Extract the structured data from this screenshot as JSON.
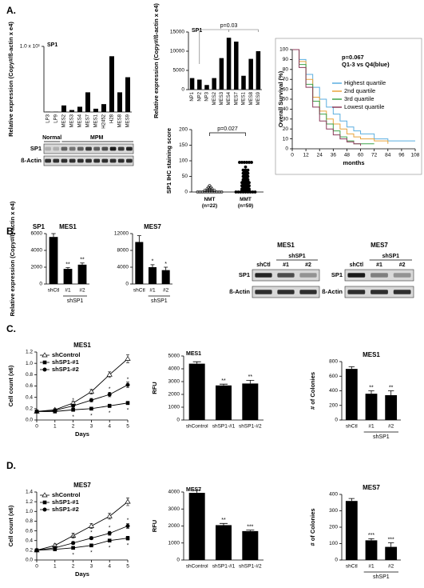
{
  "panel_labels": [
    "A.",
    "B.",
    "C.",
    "D."
  ],
  "blots": [
    {
      "bands": [
        "SP1",
        "ß-Actin"
      ],
      "groups": [
        "Normal",
        "MPM"
      ]
    },
    {
      "title": "MES1",
      "lanes": [
        "shCtl",
        "#1",
        "#2"
      ],
      "group": "shSP1",
      "bands": [
        "SP1",
        "ß-Actin"
      ]
    },
    {
      "title": "MES7",
      "lanes": [
        "shCtl",
        "#1",
        "#2"
      ],
      "group": "shSP1",
      "bands": [
        "SP1",
        "ß-Actin"
      ]
    }
  ],
  "chart_data": [
    {
      "type": "bar",
      "title": "SP1",
      "ylabel": "Relative expression (Copy#/ß-actin x e4)",
      "categories": [
        "LP3",
        "LP9",
        "MES2",
        "MES3",
        "MES4",
        "MES7",
        "MES1",
        "H2452",
        "H28",
        "MES8",
        "MES9"
      ],
      "values": [
        0.05,
        0.05,
        1,
        0.3,
        0.8,
        3,
        0.5,
        1.2,
        8.5,
        3,
        5.3
      ],
      "color": "#000000",
      "ylim": [
        0,
        10
      ],
      "yticks": [
        {
          "value": 10,
          "label": "1.0 x 10¹"
        }
      ]
    },
    {
      "type": "bar",
      "title": "SP1",
      "ylabel": "Relative expression (Copy#/ß-actin x e4)",
      "annotation": "p=0.03",
      "categories": [
        "NP1",
        "NP2",
        "NP3",
        "MES2",
        "MES3",
        "MES4",
        "MES7",
        "MES1",
        "MES8",
        "MES9"
      ],
      "values": [
        3000,
        2600,
        1200,
        3000,
        8200,
        13500,
        12500,
        3600,
        8000,
        10000
      ],
      "color": "#000000",
      "ylim": [
        0,
        15000
      ],
      "yticks": [
        0,
        5000,
        10000,
        15000
      ]
    },
    {
      "type": "strip",
      "ylabel": "SP1 IHC staining score",
      "annotation": "p=0.027",
      "categories": [
        "NMT\n(n=22)",
        "MMT\n(n=59)"
      ],
      "values": [
        [
          0,
          0,
          0,
          0,
          0,
          0,
          0,
          0,
          0,
          0,
          0,
          5,
          5,
          5,
          5,
          5,
          10,
          10,
          10,
          15,
          15,
          20
        ],
        [
          0,
          0,
          0,
          0,
          0,
          0,
          0,
          0,
          0,
          5,
          5,
          5,
          5,
          10,
          10,
          10,
          10,
          15,
          15,
          15,
          20,
          20,
          20,
          20,
          25,
          25,
          25,
          30,
          30,
          30,
          30,
          35,
          35,
          35,
          40,
          40,
          40,
          45,
          45,
          50,
          50,
          50,
          55,
          55,
          60,
          60,
          60,
          65,
          65,
          70,
          70,
          70,
          80,
          95,
          95,
          95,
          95,
          95,
          95
        ]
      ],
      "ylim": [
        0,
        200
      ],
      "yticks": [
        0,
        50,
        100,
        150,
        200
      ]
    },
    {
      "type": "line",
      "step": true,
      "xlabel": "months",
      "ylabel": "Overall Survival (%)",
      "annotation": [
        "p=0.067",
        "Q1-3 vs Q4(blue)"
      ],
      "x": [
        0,
        6,
        12,
        18,
        24,
        30,
        36,
        42,
        48,
        54,
        60,
        72,
        84,
        96,
        108
      ],
      "series": [
        {
          "name": "Highest quartile",
          "color": "#5aaee0",
          "values": [
            100,
            90,
            75,
            62,
            50,
            42,
            35,
            28,
            22,
            18,
            15,
            10,
            8,
            8,
            8
          ]
        },
        {
          "name": "2nd quartile",
          "color": "#e8a33c",
          "values": [
            100,
            88,
            70,
            52,
            38,
            30,
            25,
            20,
            15,
            12,
            10,
            8,
            5,
            null,
            null
          ]
        },
        {
          "name": "3rd quartile",
          "color": "#3fa34a",
          "values": [
            100,
            85,
            65,
            48,
            35,
            25,
            18,
            12,
            8,
            5,
            5,
            5,
            null,
            null,
            null
          ]
        },
        {
          "name": "Lowest quartile",
          "color": "#8b3a5a",
          "values": [
            100,
            82,
            62,
            42,
            28,
            20,
            14,
            10,
            7,
            5,
            3,
            null,
            null,
            null,
            null
          ]
        }
      ],
      "xlim": [
        0,
        108
      ],
      "xticks": [
        0,
        12,
        24,
        36,
        48,
        60,
        72,
        84,
        96,
        108
      ],
      "ylim": [
        0,
        100
      ],
      "yticks": [
        0,
        10,
        20,
        30,
        40,
        50,
        60,
        70,
        80,
        90,
        100
      ]
    },
    {
      "type": "bar",
      "label": "SP1",
      "title": "MES1",
      "ylabel": "Relative expression (Copy#/ß-actin x e4)",
      "categories": [
        "shCtl",
        "#1",
        "#2"
      ],
      "values": [
        5600,
        1800,
        2300
      ],
      "errors": [
        400,
        150,
        200
      ],
      "sig_labels": [
        null,
        "**",
        "**"
      ],
      "group_label": "shSP1",
      "color": "#000000",
      "ylim": [
        0,
        6000
      ],
      "yticks": [
        0,
        2000,
        4000,
        6000
      ]
    },
    {
      "type": "bar",
      "title": "MES7",
      "categories": [
        "shCtl",
        "#1",
        "#2"
      ],
      "values": [
        10000,
        4000,
        3300
      ],
      "errors": [
        1500,
        600,
        700
      ],
      "sig_labels": [
        null,
        "*",
        "*"
      ],
      "group_label": "shSP1",
      "color": "#000000",
      "ylim": [
        0,
        12000
      ],
      "yticks": [
        0,
        4000,
        8000,
        12000
      ]
    },
    {
      "type": "line",
      "title": "MES1",
      "xlabel": "Days",
      "ylabel": "Cell count (x6)",
      "x": [
        0,
        1,
        2,
        3,
        4,
        5
      ],
      "series": [
        {
          "name": "shControl",
          "marker": "triangle",
          "values": [
            0.15,
            0.18,
            0.3,
            0.5,
            0.8,
            1.08
          ],
          "errors": [
            0.01,
            0.02,
            0.03,
            0.04,
            0.05,
            0.07
          ]
        },
        {
          "name": "shSP1-#1",
          "marker": "square",
          "values": [
            0.15,
            0.15,
            0.18,
            0.2,
            0.25,
            0.3
          ],
          "errors": [
            0.01,
            0.01,
            0.02,
            0.02,
            0.03,
            0.03
          ],
          "sig_labels": [
            null,
            null,
            "*",
            "*",
            "*",
            "*"
          ]
        },
        {
          "name": "shSP1-#2",
          "marker": "circle",
          "values": [
            0.15,
            0.17,
            0.25,
            0.35,
            0.45,
            0.62
          ],
          "errors": [
            0.01,
            0.02,
            0.03,
            0.03,
            0.04,
            0.05
          ],
          "sig_labels": [
            null,
            null,
            "*",
            "*",
            "*",
            "*"
          ]
        }
      ],
      "xlim": [
        0,
        5
      ],
      "xticks": [
        0,
        1,
        2,
        3,
        4,
        5
      ],
      "ylim": [
        0,
        1.2
      ],
      "yticks": [
        {
          "value": 0,
          "label": "0.0"
        },
        {
          "value": 0.2,
          "label": "0.2"
        },
        {
          "value": 0.4,
          "label": "0.4"
        },
        {
          "value": 0.6,
          "label": "0.6"
        },
        {
          "value": 0.8,
          "label": "0.8"
        },
        {
          "value": 1,
          "label": "1.0"
        },
        {
          "value": 1.2,
          "label": "1.2"
        }
      ]
    },
    {
      "type": "bar",
      "label": "MES1",
      "ylabel": "RFU",
      "categories": [
        "shControl",
        "shSP1-#1",
        "shSP1-#2"
      ],
      "values": [
        4400,
        2700,
        2850
      ],
      "errors": [
        150,
        100,
        250
      ],
      "sig_labels": [
        null,
        "**",
        "**"
      ],
      "color": "#000000",
      "ylim": [
        0,
        5000
      ],
      "yticks": [
        0,
        1000,
        2000,
        3000,
        4000,
        5000
      ]
    },
    {
      "type": "bar",
      "title": "MES1",
      "ylabel": "# of Colonies",
      "categories": [
        "shCtl",
        "#1",
        "#2"
      ],
      "values": [
        700,
        360,
        340
      ],
      "errors": [
        30,
        40,
        60
      ],
      "sig_labels": [
        null,
        "**",
        "**"
      ],
      "group_label": "shSP1",
      "color": "#000000",
      "ylim": [
        0,
        800
      ],
      "yticks": [
        0,
        200,
        400,
        600,
        800
      ]
    },
    {
      "type": "line",
      "title": "MES7",
      "xlabel": "Days",
      "ylabel": "Cell count (x6)",
      "x": [
        0,
        1,
        2,
        3,
        4,
        5
      ],
      "series": [
        {
          "name": "shControl",
          "marker": "triangle",
          "values": [
            0.2,
            0.3,
            0.5,
            0.7,
            0.9,
            1.2
          ],
          "errors": [
            0.02,
            0.03,
            0.05,
            0.05,
            0.06,
            0.08
          ]
        },
        {
          "name": "shSP1-#1",
          "marker": "square",
          "values": [
            0.2,
            0.22,
            0.25,
            0.3,
            0.4,
            0.45
          ],
          "errors": [
            0.01,
            0.02,
            0.02,
            0.03,
            0.03,
            0.04
          ],
          "sig_labels": [
            null,
            null,
            "*",
            "*",
            "*",
            "*"
          ]
        },
        {
          "name": "shSP1-#2",
          "marker": "circle",
          "values": [
            0.2,
            0.25,
            0.35,
            0.45,
            0.55,
            0.7
          ],
          "errors": [
            0.01,
            0.02,
            0.03,
            0.03,
            0.04,
            0.05
          ],
          "sig_labels": [
            null,
            null,
            "*",
            "*",
            "*",
            "*"
          ]
        }
      ],
      "xlim": [
        0,
        5
      ],
      "xticks": [
        0,
        1,
        2,
        3,
        4,
        5
      ],
      "ylim": [
        0,
        1.4
      ],
      "yticks": [
        {
          "value": 0,
          "label": "0.0"
        },
        {
          "value": 0.2,
          "label": "0.2"
        },
        {
          "value": 0.4,
          "label": "0.4"
        },
        {
          "value": 0.6,
          "label": "0.6"
        },
        {
          "value": 0.8,
          "label": "0.8"
        },
        {
          "value": 1,
          "label": "1.0"
        },
        {
          "value": 1.2,
          "label": "1.2"
        },
        {
          "value": 1.4,
          "label": "1.4"
        }
      ]
    },
    {
      "type": "bar",
      "label": "MES7",
      "ylabel": "RFU",
      "categories": [
        "shControl",
        "shSP1-#1",
        "shSP1-#2"
      ],
      "values": [
        3950,
        2050,
        1700
      ],
      "errors": [
        150,
        100,
        60
      ],
      "sig_labels": [
        null,
        "**",
        "***"
      ],
      "color": "#000000",
      "ylim": [
        0,
        4000
      ],
      "yticks": [
        0,
        1000,
        2000,
        3000,
        4000
      ]
    },
    {
      "type": "bar",
      "title": "MES7",
      "ylabel": "# of Colonies",
      "categories": [
        "shCtl",
        "#1",
        "#2"
      ],
      "values": [
        360,
        120,
        80
      ],
      "errors": [
        15,
        10,
        25
      ],
      "sig_labels": [
        null,
        "***",
        "***"
      ],
      "group_label": "shSP1",
      "color": "#000000",
      "ylim": [
        0,
        400
      ],
      "yticks": [
        0,
        100,
        200,
        300,
        400
      ]
    }
  ]
}
